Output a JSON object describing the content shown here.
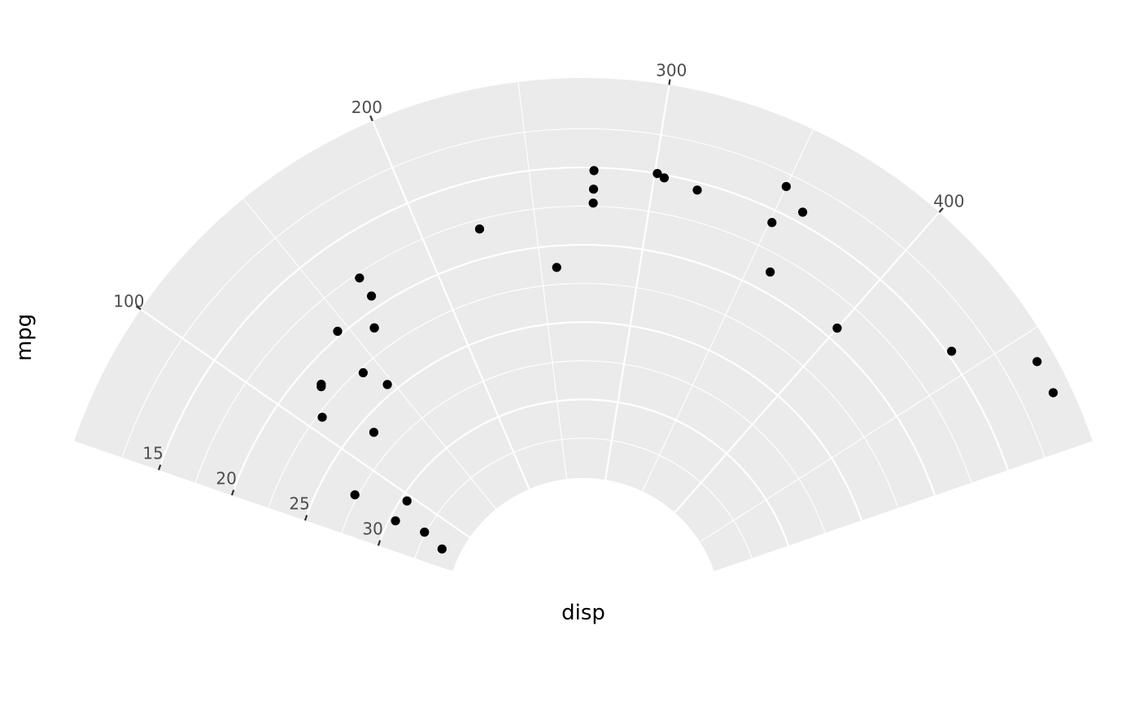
{
  "chart_data": {
    "type": "scatter",
    "coord": "polar-partial",
    "xlabel": "disp",
    "ylabel": "mpg",
    "xlim": [
      71.1,
      472
    ],
    "ylim": [
      10.4,
      33.9
    ],
    "x_ticks": [
      100,
      200,
      300,
      400
    ],
    "y_ticks": [
      15,
      20,
      25,
      30
    ],
    "grid": true,
    "colors": {
      "panel": "#EBEBEB",
      "grid": "#FFFFFF",
      "point": "#000000",
      "tick_text": "#4D4D4D",
      "tick_mark": "#333333"
    },
    "points": [
      {
        "x": 160,
        "y": 21.0
      },
      {
        "x": 160,
        "y": 21.0
      },
      {
        "x": 108,
        "y": 22.8
      },
      {
        "x": 258,
        "y": 21.4
      },
      {
        "x": 360,
        "y": 18.7
      },
      {
        "x": 225,
        "y": 18.1
      },
      {
        "x": 360,
        "y": 14.3
      },
      {
        "x": 146.7,
        "y": 24.4
      },
      {
        "x": 140.8,
        "y": 22.8
      },
      {
        "x": 167.6,
        "y": 19.2
      },
      {
        "x": 167.6,
        "y": 17.8
      },
      {
        "x": 275.8,
        "y": 16.4
      },
      {
        "x": 275.8,
        "y": 17.3
      },
      {
        "x": 275.8,
        "y": 15.2
      },
      {
        "x": 472,
        "y": 10.4
      },
      {
        "x": 460,
        "y": 10.4
      },
      {
        "x": 440,
        "y": 14.7
      },
      {
        "x": 78.7,
        "y": 32.4
      },
      {
        "x": 75.7,
        "y": 30.4
      },
      {
        "x": 71.1,
        "y": 33.9
      },
      {
        "x": 120.1,
        "y": 21.5
      },
      {
        "x": 318,
        "y": 15.5
      },
      {
        "x": 304,
        "y": 15.2
      },
      {
        "x": 350,
        "y": 13.3
      },
      {
        "x": 400,
        "y": 19.2
      },
      {
        "x": 79,
        "y": 27.3
      },
      {
        "x": 120.3,
        "y": 26.0
      },
      {
        "x": 95.1,
        "y": 30.4
      },
      {
        "x": 351,
        "y": 15.8
      },
      {
        "x": 145,
        "y": 19.7
      },
      {
        "x": 301,
        "y": 15.0
      },
      {
        "x": 121,
        "y": 21.4
      }
    ]
  }
}
